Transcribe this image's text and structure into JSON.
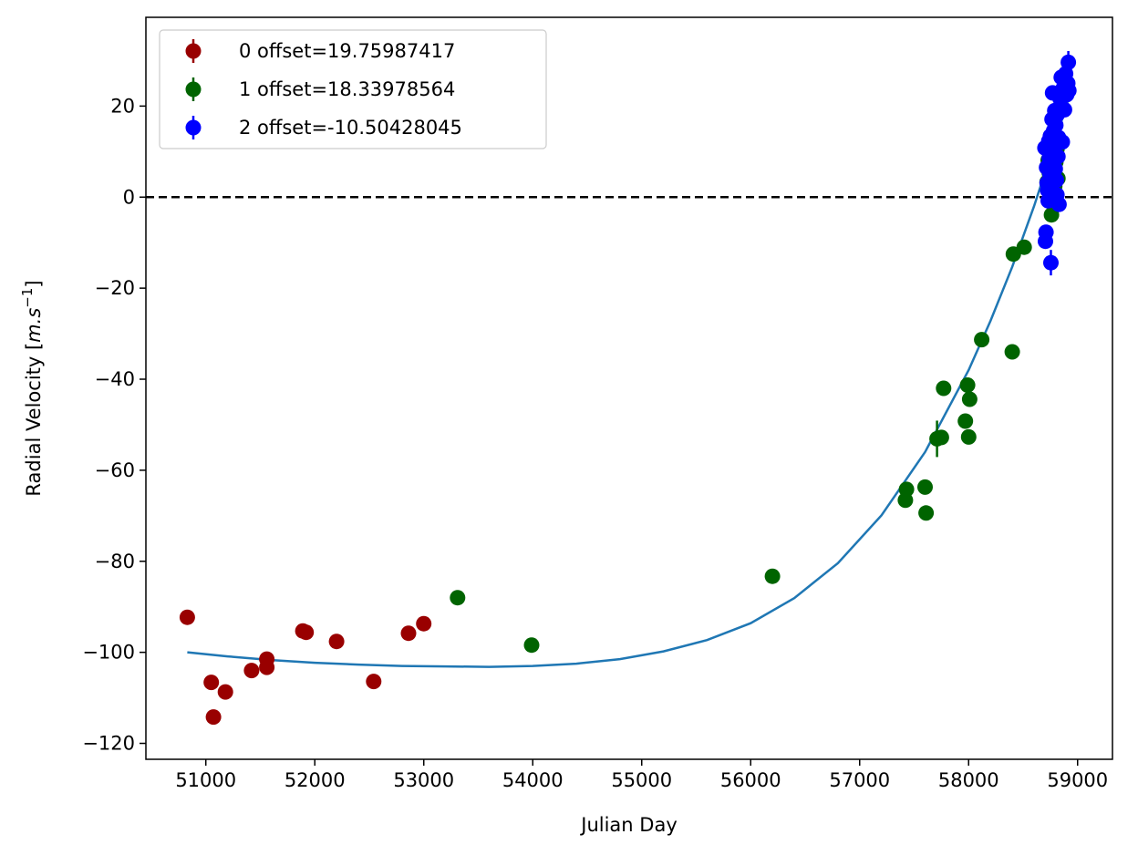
{
  "chart_data": {
    "type": "scatter",
    "xlabel": "Julian Day",
    "ylabel_main": "Radial Velocity [",
    "ylabel_unit": "m.s",
    "ylabel_exp": "−1",
    "ylabel_close": "]",
    "xlim": [
      50450,
      59320
    ],
    "ylim": [
      -123.5,
      39.5
    ],
    "x_ticks": [
      51000,
      52000,
      53000,
      54000,
      55000,
      56000,
      57000,
      58000,
      59000
    ],
    "x_tick_labels": [
      "51000",
      "52000",
      "53000",
      "54000",
      "55000",
      "56000",
      "57000",
      "58000",
      "59000"
    ],
    "y_ticks": [
      20,
      0,
      -20,
      -40,
      -60,
      -80,
      -100,
      -120
    ],
    "y_tick_labels": [
      "20",
      "0",
      "−20",
      "−40",
      "−60",
      "−80",
      "−100",
      "−120"
    ],
    "grid": false,
    "legend_position": "top-left",
    "zero_line": {
      "y": 0,
      "color": "#000000",
      "style": "dashed"
    },
    "model_curve": {
      "color": "#1f77b4",
      "x": [
        50830,
        51200,
        51600,
        52000,
        52400,
        52800,
        53200,
        53600,
        54000,
        54400,
        54800,
        55200,
        55600,
        56000,
        56400,
        56800,
        57200,
        57600,
        58000,
        58200,
        58400,
        58600,
        58800,
        58950
      ],
      "y": [
        -100,
        -100.9,
        -101.7,
        -102.3,
        -102.7,
        -103,
        -103.1,
        -103.2,
        -103,
        -102.5,
        -101.5,
        -99.8,
        -97.3,
        -93.6,
        -88.1,
        -80.4,
        -69.9,
        -56,
        -38,
        -27.2,
        -15.3,
        -2,
        12.7,
        24.2
      ]
    },
    "series": [
      {
        "name": "0 offset=19.75987417",
        "color": "#990000",
        "x": [
          50830,
          51050,
          51070,
          51180,
          51420,
          51560,
          51560,
          51890,
          51920,
          52200,
          52540,
          52860,
          53000
        ],
        "y": [
          -92.3,
          -106.6,
          -114.2,
          -108.7,
          -104,
          -101.5,
          -103.3,
          -95.3,
          -95.6,
          -97.6,
          -106.4,
          -95.8,
          -93.7
        ],
        "yerr": [
          0.8,
          0.8,
          0.8,
          0.8,
          0.8,
          0.8,
          0.8,
          0.8,
          0.8,
          0.8,
          0.8,
          0.8,
          0.8
        ]
      },
      {
        "name": "1 offset=18.33978564",
        "color": "#006400",
        "x": [
          53310,
          53990,
          56200,
          57420,
          57430,
          57600,
          57610,
          57710,
          57750,
          57770,
          57970,
          57990,
          58000,
          58010,
          58120,
          58400,
          58410,
          58510,
          58720,
          58730,
          58740,
          58750,
          58760,
          58770,
          58780,
          58790,
          58800,
          58810,
          58820
        ],
        "y": [
          -88,
          -98.4,
          -83.3,
          -66.6,
          -64.2,
          -63.7,
          -69.4,
          -53.1,
          -52.8,
          -42,
          -49.2,
          -41.3,
          -52.7,
          -44.4,
          -31.3,
          -34,
          -12.5,
          -11,
          3.3,
          8.1,
          5.3,
          1.7,
          -3.9,
          9.3,
          6.6,
          2.4,
          7.7,
          10.5,
          4.1
        ],
        "yerr": [
          0.8,
          0.8,
          0.8,
          0.8,
          0.8,
          0.8,
          0.8,
          4,
          0.8,
          0.8,
          0.8,
          0.8,
          0.8,
          0.8,
          0.8,
          0.8,
          0.8,
          0.8,
          0.8,
          0.8,
          0.8,
          0.8,
          0.8,
          0.8,
          0.8,
          0.8,
          0.8,
          0.8,
          0.8
        ]
      },
      {
        "name": "2 offset=-10.50428045",
        "color": "#0000ff",
        "x": [
          58700,
          58705,
          58710,
          58715,
          58720,
          58725,
          58730,
          58735,
          58740,
          58745,
          58750,
          58755,
          58760,
          58765,
          58770,
          58775,
          58780,
          58785,
          58790,
          58795,
          58800,
          58805,
          58810,
          58815,
          58820,
          58825,
          58830,
          58840,
          58850,
          58860,
          58870,
          58880,
          58890,
          58900,
          58910,
          58915,
          58920
        ],
        "y": [
          10.8,
          -9.7,
          -7.7,
          6.5,
          3.1,
          1.5,
          -0.8,
          12.3,
          8.6,
          5.1,
          13.4,
          -14.4,
          2.2,
          17.1,
          22.9,
          9.8,
          14.6,
          11.2,
          19,
          6.2,
          15.8,
          3.7,
          0.5,
          18.2,
          8.9,
          13.1,
          -1.6,
          21.6,
          26.3,
          12.1,
          24,
          19.2,
          27.1,
          22.5,
          25,
          29.6,
          23.4
        ],
        "yerr": [
          1,
          1,
          1,
          1,
          1,
          1,
          1,
          1,
          1,
          1,
          1,
          2.8,
          1,
          1,
          1,
          1,
          1,
          1,
          1,
          1,
          1,
          1,
          1,
          1,
          1,
          1,
          1,
          1,
          1,
          1,
          1,
          1,
          1,
          1,
          1,
          2.5,
          1
        ]
      }
    ]
  }
}
